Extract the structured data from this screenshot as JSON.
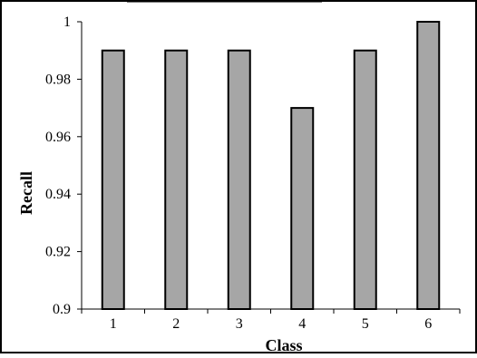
{
  "chart_data": {
    "type": "bar",
    "categories": [
      "1",
      "2",
      "3",
      "4",
      "5",
      "6"
    ],
    "values": [
      0.99,
      0.99,
      0.99,
      0.97,
      0.99,
      1.0
    ],
    "xlabel": "Class",
    "ylabel": "Recall",
    "ylim": [
      0.9,
      1.0
    ],
    "yticks": [
      "0.9",
      "0.92",
      "0.94",
      "0.96",
      "0.98",
      "1"
    ],
    "grid": false,
    "legend": "none",
    "bar_fill": "#a6a6a6",
    "bar_stroke": "#000000"
  }
}
